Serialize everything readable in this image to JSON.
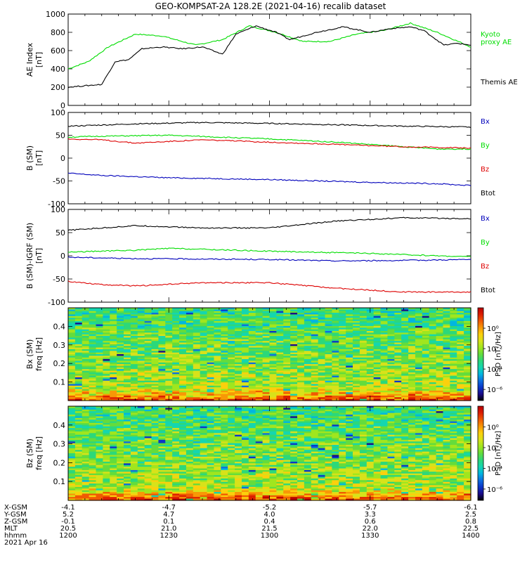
{
  "chart_data": {
    "title": "GEO-KOMPSAT-2A 128.2E (2021-04-16) recalib dataset",
    "x_time": [
      "12:00",
      "14:00"
    ],
    "panels": [
      {
        "type": "line",
        "ylabel_lines": [
          "AE Index",
          "[nT]"
        ],
        "ylim": [
          0,
          1000
        ],
        "yticks": [
          0,
          200,
          400,
          600,
          800,
          1000
        ],
        "series": [
          {
            "name": "Kyoto proxy AE",
            "legend_lines": [
              "Kyoto",
              "proxy AE"
            ],
            "color": "#00dd00",
            "x": [
              0,
              6,
              12,
              20,
              28,
              38,
              46,
              54,
              62,
              70,
              78,
              86,
              94,
              102,
              110,
              120
            ],
            "y": [
              400,
              480,
              640,
              780,
              760,
              660,
              720,
              870,
              800,
              700,
              700,
              780,
              820,
              900,
              800,
              640
            ]
          },
          {
            "name": "Themis AE",
            "legend_lines": [
              "Themis AE"
            ],
            "color": "#000000",
            "x": [
              0,
              10,
              14,
              18,
              22,
              28,
              34,
              40,
              46,
              50,
              56,
              62,
              66,
              74,
              82,
              90,
              96,
              102,
              106,
              112,
              116,
              120
            ],
            "y": [
              200,
              230,
              480,
              500,
              620,
              640,
              620,
              640,
              560,
              780,
              870,
              800,
              720,
              800,
              860,
              800,
              840,
              860,
              820,
              660,
              680,
              660
            ]
          }
        ]
      },
      {
        "type": "line",
        "ylabel_lines": [
          "B (SM)",
          "[nT]"
        ],
        "ylim": [
          -100,
          100
        ],
        "yticks": [
          -100,
          -50,
          0,
          50,
          100
        ],
        "series": [
          {
            "name": "Bx",
            "color": "#0000bb",
            "x": [
              0,
              10,
              30,
              60,
              90,
              110,
              120
            ],
            "y": [
              -33,
              -38,
              -43,
              -47,
              -53,
              -56,
              -60
            ]
          },
          {
            "name": "By",
            "color": "#00dd00",
            "x": [
              0,
              10,
              30,
              60,
              80,
              100,
              110,
              120
            ],
            "y": [
              46,
              48,
              50,
              42,
              35,
              25,
              20,
              20
            ]
          },
          {
            "name": "Bz",
            "color": "#dd0000",
            "x": [
              0,
              10,
              20,
              40,
              60,
              80,
              100,
              120
            ],
            "y": [
              42,
              40,
              33,
              40,
              35,
              30,
              25,
              22
            ]
          },
          {
            "name": "Btot",
            "color": "#000000",
            "x": [
              0,
              20,
              40,
              60,
              80,
              100,
              120
            ],
            "y": [
              70,
              75,
              78,
              76,
              73,
              70,
              68
            ]
          }
        ]
      },
      {
        "type": "line",
        "ylabel_lines": [
          "B (SM)-IGRF (SM)",
          "[nT]"
        ],
        "ylim": [
          -100,
          100
        ],
        "yticks": [
          -100,
          -50,
          0,
          50,
          100
        ],
        "series": [
          {
            "name": "Bx",
            "color": "#0000bb",
            "x": [
              0,
              20,
              40,
              60,
              80,
              100,
              120
            ],
            "y": [
              -3,
              -6,
              -7,
              -8,
              -11,
              -10,
              -8
            ]
          },
          {
            "name": "By",
            "color": "#00dd00",
            "x": [
              0,
              20,
              30,
              60,
              90,
              110,
              120
            ],
            "y": [
              8,
              12,
              16,
              10,
              5,
              0,
              -2
            ]
          },
          {
            "name": "Bz",
            "color": "#dd0000",
            "x": [
              0,
              10,
              20,
              40,
              60,
              80,
              100,
              120
            ],
            "y": [
              -55,
              -62,
              -65,
              -58,
              -58,
              -70,
              -78,
              -78
            ]
          },
          {
            "name": "Btot",
            "color": "#000000",
            "x": [
              0,
              20,
              40,
              60,
              80,
              100,
              120
            ],
            "y": [
              55,
              65,
              60,
              60,
              75,
              82,
              80
            ]
          }
        ]
      },
      {
        "type": "heatmap",
        "ylabel_lines": [
          "Bx (SM)",
          "freq [Hz]"
        ],
        "ylim": [
          0,
          0.5
        ],
        "yticks": [
          0.1,
          0.2,
          0.3,
          0.4
        ],
        "colorbar_label": "PSD [nT²/Hz]"
      },
      {
        "type": "heatmap",
        "ylabel_lines": [
          "Bz (SM)",
          "freq [Hz]"
        ],
        "ylim": [
          0,
          0.5
        ],
        "yticks": [
          0.1,
          0.2,
          0.3,
          0.4
        ],
        "colorbar_label": "PSD [nT²/Hz]"
      }
    ],
    "colorbar_ticks": [
      "10⁰",
      "10⁻²",
      "10⁻⁴",
      "10⁻⁶"
    ],
    "ephemeris": {
      "labels": [
        "X-GSM",
        "Y-GSM",
        "Z-GSM",
        "MLT",
        "hhmm",
        "2021 Apr 16"
      ],
      "columns": [
        [
          "-4.1",
          "5.2",
          "-0.1",
          "20.5",
          "1200"
        ],
        [
          "-4.7",
          "4.7",
          "0.1",
          "21.0",
          "1230"
        ],
        [
          "-5.2",
          "4.0",
          "0.4",
          "21.5",
          "1300"
        ],
        [
          "-5.7",
          "3.3",
          "0.6",
          "22.0",
          "1330"
        ],
        [
          "-6.1",
          "2.5",
          "0.8",
          "22.5",
          "1400"
        ]
      ]
    }
  }
}
